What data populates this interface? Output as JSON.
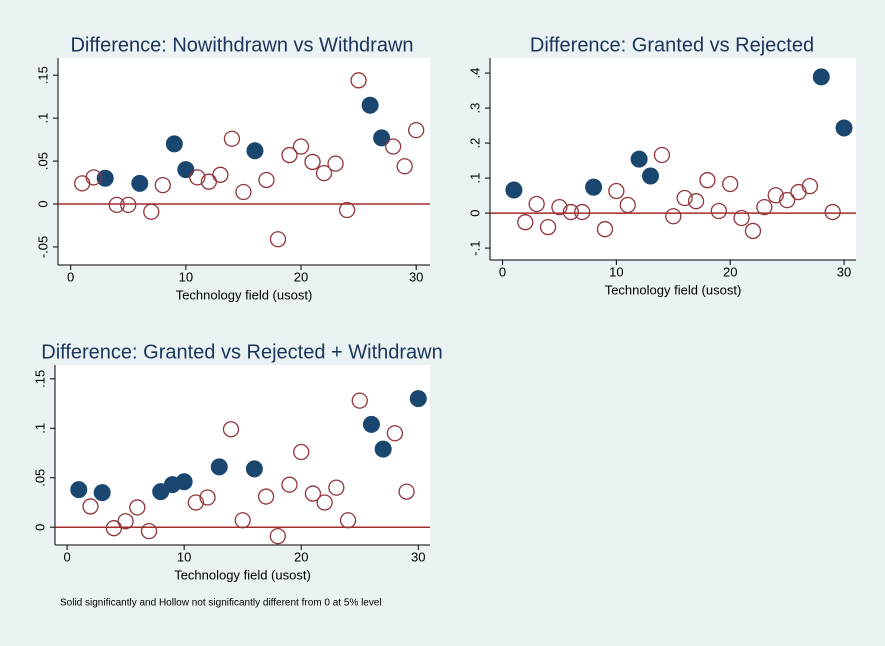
{
  "chart_data": [
    {
      "type": "scatter",
      "title": "Difference: Nowithdrawn vs Withdrawn",
      "xlabel": "Technology field (usost)",
      "xlim": [
        -1.1,
        31.2
      ],
      "ylim": [
        -0.071,
        0.17
      ],
      "xticks": [
        0,
        10,
        20,
        30
      ],
      "yticks": [
        {
          "value": -0.05,
          "label": "-.05"
        },
        0,
        {
          "value": 0.05,
          "label": ".05"
        },
        {
          "value": 0.1,
          "label": ".1"
        },
        {
          "value": 0.15,
          "label": ".15"
        }
      ],
      "yline": 0,
      "yline_color": "#a52a2a",
      "series": [
        {
          "filled": true,
          "color": "#1a476f",
          "x": [
            3,
            6,
            9,
            10,
            16,
            26,
            27
          ],
          "values": [
            0.03,
            0.024,
            0.07,
            0.04,
            0.062,
            0.115,
            0.077
          ]
        },
        {
          "filled": false,
          "color": "#90353b",
          "x": [
            1,
            2,
            4,
            5,
            7,
            8,
            11,
            12,
            13,
            14,
            15,
            17,
            18,
            19,
            20,
            21,
            22,
            23,
            24,
            25,
            28,
            29,
            30
          ],
          "values": [
            0.024,
            0.031,
            -0.001,
            -0.001,
            -0.009,
            0.022,
            0.031,
            0.026,
            0.034,
            0.076,
            0.014,
            0.028,
            -0.041,
            0.057,
            0.067,
            0.049,
            0.036,
            0.047,
            -0.007,
            0.144,
            0.067,
            0.044,
            0.086
          ]
        }
      ]
    },
    {
      "type": "scatter",
      "title": "Difference: Granted vs Rejected",
      "xlabel": "Technology field (usost)",
      "xlim": [
        -1.1,
        31.05
      ],
      "ylim": [
        -0.134,
        0.443
      ],
      "xticks": [
        0,
        10,
        20,
        30
      ],
      "yticks": [
        {
          "value": -0.1,
          "label": "-.1"
        },
        0,
        {
          "value": 0.1,
          "label": ".1"
        },
        {
          "value": 0.2,
          "label": ".2"
        },
        {
          "value": 0.3,
          "label": ".3"
        },
        {
          "value": 0.4,
          "label": ".4"
        }
      ],
      "yline": 0,
      "yline_color": "#a52a2a",
      "series": [
        {
          "filled": true,
          "color": "#1a476f",
          "x": [
            1,
            8,
            12,
            13,
            28,
            30
          ],
          "values": [
            0.066,
            0.074,
            0.154,
            0.106,
            0.389,
            0.243
          ]
        },
        {
          "filled": false,
          "color": "#90353b",
          "x": [
            2,
            3,
            4,
            5,
            6,
            7,
            9,
            10,
            11,
            14,
            15,
            16,
            17,
            18,
            19,
            20,
            21,
            22,
            23,
            24,
            25,
            26,
            27,
            29
          ],
          "values": [
            -0.026,
            0.026,
            -0.04,
            0.017,
            0.003,
            0.003,
            -0.046,
            0.063,
            0.023,
            0.166,
            -0.009,
            0.043,
            0.034,
            0.094,
            0.006,
            0.083,
            -0.014,
            -0.051,
            0.017,
            0.051,
            0.037,
            0.06,
            0.077,
            0.003
          ]
        }
      ]
    },
    {
      "type": "scatter",
      "title": "Difference: Granted vs Rejected + Withdrawn",
      "xlabel": "Technology field (usost)",
      "xlim": [
        -1.03,
        31.0
      ],
      "ylim": [
        -0.018,
        0.164
      ],
      "xticks": [
        0,
        10,
        20,
        30
      ],
      "yticks": [
        0,
        {
          "value": 0.05,
          "label": ".05"
        },
        {
          "value": 0.1,
          "label": ".1"
        },
        {
          "value": 0.15,
          "label": ".15"
        }
      ],
      "yline": 0,
      "yline_color": "#a52a2a",
      "series": [
        {
          "filled": true,
          "color": "#1a476f",
          "x": [
            1,
            3,
            8,
            9,
            10,
            13,
            16,
            26,
            27,
            30
          ],
          "values": [
            0.038,
            0.035,
            0.036,
            0.043,
            0.046,
            0.061,
            0.059,
            0.104,
            0.079,
            0.13
          ]
        },
        {
          "filled": false,
          "color": "#90353b",
          "x": [
            2,
            4,
            5,
            6,
            7,
            11,
            12,
            14,
            15,
            17,
            18,
            19,
            20,
            21,
            22,
            23,
            24,
            25,
            28,
            29
          ],
          "values": [
            0.021,
            -0.001,
            0.006,
            0.02,
            -0.004,
            0.025,
            0.03,
            0.099,
            0.007,
            0.031,
            -0.009,
            0.043,
            0.076,
            0.034,
            0.025,
            0.04,
            0.007,
            0.128,
            0.095,
            0.036
          ]
        }
      ]
    }
  ],
  "note": "Solid significantly and Hollow not significantly different from 0 at 5% level"
}
